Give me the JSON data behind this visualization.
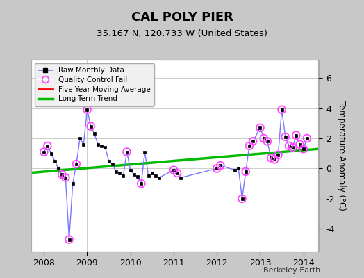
{
  "title": "CAL POLY PIER",
  "subtitle": "35.167 N, 120.733 W (United States)",
  "ylabel": "Temperature Anomaly (°C)",
  "attribution": "Berkeley Earth",
  "ylim": [
    -5.5,
    7.2
  ],
  "yticks": [
    -4,
    -2,
    0,
    2,
    4,
    6
  ],
  "xlim": [
    2007.7,
    2014.35
  ],
  "xticks": [
    2008,
    2009,
    2010,
    2011,
    2012,
    2013,
    2014
  ],
  "bg_color": "#c8c8c8",
  "plot_bg_color": "#ffffff",
  "raw_x": [
    2008.0,
    2008.083,
    2008.167,
    2008.25,
    2008.333,
    2008.417,
    2008.5,
    2008.583,
    2008.667,
    2008.75,
    2008.833,
    2008.917,
    2009.0,
    2009.083,
    2009.167,
    2009.25,
    2009.333,
    2009.417,
    2009.5,
    2009.583,
    2009.667,
    2009.75,
    2009.833,
    2009.917,
    2010.0,
    2010.083,
    2010.167,
    2010.25,
    2010.333,
    2010.417,
    2010.5,
    2010.583,
    2010.667,
    2011.0,
    2011.083,
    2011.167,
    2012.0,
    2012.083,
    2012.417,
    2012.5,
    2012.583,
    2012.667,
    2012.75,
    2012.833,
    2013.0,
    2013.083,
    2013.167,
    2013.25,
    2013.333,
    2013.417,
    2013.5,
    2013.583,
    2013.667,
    2013.75,
    2013.833,
    2013.917,
    2014.0,
    2014.083
  ],
  "raw_y": [
    1.1,
    1.5,
    1.0,
    0.5,
    0.0,
    -0.4,
    -0.6,
    -4.7,
    -1.0,
    0.3,
    2.0,
    1.6,
    3.9,
    2.8,
    2.3,
    1.6,
    1.5,
    1.4,
    0.5,
    0.3,
    -0.2,
    -0.3,
    -0.5,
    1.1,
    -0.1,
    -0.4,
    -0.55,
    -1.0,
    1.1,
    -0.5,
    -0.3,
    -0.5,
    -0.6,
    -0.1,
    -0.3,
    -0.6,
    0.0,
    0.2,
    -0.1,
    0.0,
    -2.0,
    -0.2,
    1.5,
    1.8,
    2.7,
    2.0,
    1.8,
    0.7,
    0.6,
    0.9,
    3.9,
    2.1,
    1.5,
    1.4,
    2.2,
    1.6,
    1.3,
    2.0
  ],
  "qc_fail_x": [
    2008.0,
    2008.083,
    2008.417,
    2008.5,
    2008.583,
    2008.75,
    2009.0,
    2009.083,
    2009.917,
    2010.25,
    2011.0,
    2011.083,
    2012.0,
    2012.083,
    2012.583,
    2012.667,
    2012.75,
    2012.833,
    2013.0,
    2013.083,
    2013.167,
    2013.25,
    2013.333,
    2013.417,
    2013.5,
    2013.583,
    2013.667,
    2013.75,
    2013.833,
    2013.917,
    2014.0,
    2014.083
  ],
  "qc_fail_y": [
    1.1,
    1.5,
    -0.4,
    -0.6,
    -4.7,
    0.3,
    3.9,
    2.8,
    1.1,
    -1.0,
    -0.1,
    -0.3,
    0.0,
    0.2,
    -2.0,
    -0.2,
    1.5,
    1.8,
    2.7,
    2.0,
    1.8,
    0.7,
    0.6,
    0.9,
    3.9,
    2.1,
    1.5,
    1.4,
    2.2,
    1.6,
    1.3,
    2.0
  ],
  "trend_x": [
    2007.7,
    2014.35
  ],
  "trend_y": [
    -0.28,
    1.3
  ],
  "raw_line_color": "#7777ff",
  "raw_marker_color": "#000000",
  "qc_circle_color": "#ff44ff",
  "trend_color": "#00bb00",
  "mavg_color": "#ff0000",
  "legend_bg": "#f0f0f0"
}
